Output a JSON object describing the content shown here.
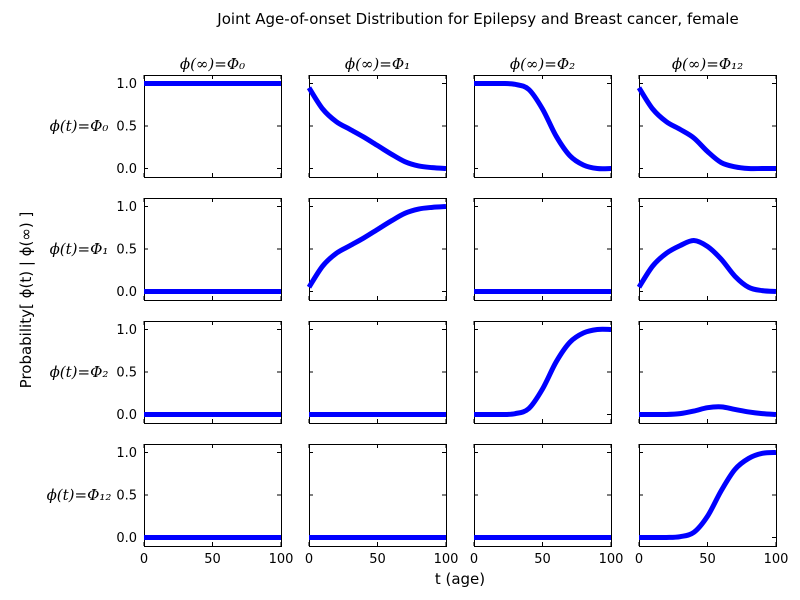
{
  "chart_data": {
    "type": "line",
    "title": "Joint Age-of-onset Distribution for Epilepsy and Breast cancer, female",
    "xlabel": "t (age)",
    "ylabel": "Probability[ ϕ(t) | ϕ(∞) ]",
    "xlim": [
      0,
      100
    ],
    "ylim": [
      -0.1,
      1.1
    ],
    "xticks": [
      "0",
      "50",
      "100"
    ],
    "yticks": [
      "0.0",
      "0.5",
      "1.0"
    ],
    "column_titles": [
      "ϕ(∞)=Φ₀",
      "ϕ(∞)=Φ₁",
      "ϕ(∞)=Φ₂",
      "ϕ(∞)=Φ₁₂"
    ],
    "row_titles": [
      "ϕ(t)=Φ₀",
      "ϕ(t)=Φ₁",
      "ϕ(t)=Φ₂",
      "ϕ(t)=Φ₁₂"
    ],
    "x": [
      0,
      10,
      20,
      30,
      40,
      50,
      60,
      70,
      80,
      90,
      100
    ],
    "panels": [
      [
        {
          "values": [
            1,
            1,
            1,
            1,
            1,
            1,
            1,
            1,
            1,
            1,
            1
          ]
        },
        {
          "values": [
            0.95,
            0.7,
            0.55,
            0.46,
            0.37,
            0.27,
            0.17,
            0.08,
            0.03,
            0.01,
            0.0
          ]
        },
        {
          "values": [
            1.0,
            1.0,
            1.0,
            0.99,
            0.93,
            0.7,
            0.38,
            0.15,
            0.04,
            0.0,
            0.0
          ]
        },
        {
          "values": [
            0.95,
            0.7,
            0.55,
            0.46,
            0.36,
            0.2,
            0.07,
            0.02,
            0.0,
            0.0,
            0.0
          ]
        }
      ],
      [
        {
          "values": [
            0,
            0,
            0,
            0,
            0,
            0,
            0,
            0,
            0,
            0,
            0
          ]
        },
        {
          "values": [
            0.05,
            0.3,
            0.45,
            0.54,
            0.63,
            0.73,
            0.83,
            0.92,
            0.97,
            0.99,
            1.0
          ]
        },
        {
          "values": [
            0,
            0,
            0,
            0,
            0,
            0,
            0,
            0,
            0,
            0,
            0
          ]
        },
        {
          "values": [
            0.05,
            0.3,
            0.45,
            0.54,
            0.6,
            0.53,
            0.38,
            0.18,
            0.05,
            0.01,
            0.0
          ]
        }
      ],
      [
        {
          "values": [
            0,
            0,
            0,
            0,
            0,
            0,
            0,
            0,
            0,
            0,
            0
          ]
        },
        {
          "values": [
            0,
            0,
            0,
            0,
            0,
            0,
            0,
            0,
            0,
            0,
            0
          ]
        },
        {
          "values": [
            0.0,
            0.0,
            0.0,
            0.01,
            0.07,
            0.3,
            0.62,
            0.85,
            0.96,
            1.0,
            1.0
          ]
        },
        {
          "values": [
            0.0,
            0.0,
            0.0,
            0.01,
            0.04,
            0.08,
            0.09,
            0.06,
            0.03,
            0.01,
            0.0
          ]
        }
      ],
      [
        {
          "values": [
            0,
            0,
            0,
            0,
            0,
            0,
            0,
            0,
            0,
            0,
            0
          ]
        },
        {
          "values": [
            0,
            0,
            0,
            0,
            0,
            0,
            0,
            0,
            0,
            0,
            0
          ]
        },
        {
          "values": [
            0,
            0,
            0,
            0,
            0,
            0,
            0,
            0,
            0,
            0,
            0
          ]
        },
        {
          "values": [
            0.0,
            0.0,
            0.0,
            0.01,
            0.06,
            0.25,
            0.55,
            0.8,
            0.93,
            0.99,
            1.0
          ]
        }
      ]
    ],
    "line_color": "#0000ff",
    "grid": false,
    "legend": "none"
  }
}
